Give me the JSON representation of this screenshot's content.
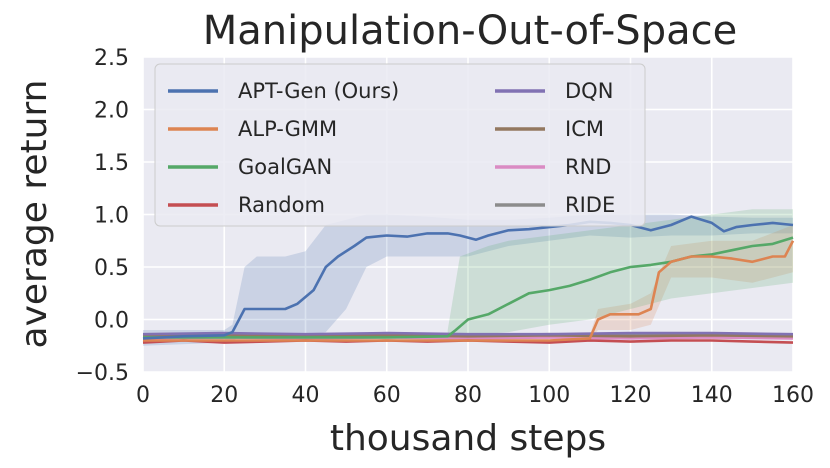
{
  "chart_data": {
    "type": "line",
    "title": "Manipulation-Out-of-Space",
    "xlabel": "thousand steps",
    "ylabel": "average return",
    "xlim": [
      0,
      160
    ],
    "ylim": [
      -0.5,
      2.5
    ],
    "xticks": [
      0,
      20,
      40,
      60,
      80,
      100,
      120,
      140,
      160
    ],
    "yticks": [
      -0.5,
      0.0,
      0.5,
      1.0,
      1.5,
      2.0,
      2.5
    ],
    "ytick_labels": [
      "−0.5",
      "0.0",
      "0.5",
      "1.0",
      "1.5",
      "2.0",
      "2.5"
    ],
    "grid": true,
    "legend_position": "top-left",
    "legend_columns": 2,
    "series": [
      {
        "name": "APT-Gen (Ours)",
        "color": "#4c72b0",
        "points": [
          [
            0,
            -0.18
          ],
          [
            10,
            -0.16
          ],
          [
            20,
            -0.15
          ],
          [
            22,
            -0.12
          ],
          [
            25,
            0.1
          ],
          [
            28,
            0.1
          ],
          [
            35,
            0.1
          ],
          [
            38,
            0.15
          ],
          [
            42,
            0.28
          ],
          [
            45,
            0.5
          ],
          [
            48,
            0.6
          ],
          [
            52,
            0.7
          ],
          [
            55,
            0.78
          ],
          [
            60,
            0.8
          ],
          [
            65,
            0.79
          ],
          [
            70,
            0.82
          ],
          [
            75,
            0.82
          ],
          [
            78,
            0.8
          ],
          [
            80,
            0.78
          ],
          [
            82,
            0.76
          ],
          [
            85,
            0.8
          ],
          [
            90,
            0.85
          ],
          [
            95,
            0.86
          ],
          [
            100,
            0.88
          ],
          [
            105,
            0.9
          ],
          [
            110,
            0.93
          ],
          [
            115,
            0.92
          ],
          [
            120,
            0.9
          ],
          [
            125,
            0.85
          ],
          [
            130,
            0.9
          ],
          [
            135,
            0.98
          ],
          [
            140,
            0.92
          ],
          [
            143,
            0.84
          ],
          [
            146,
            0.88
          ],
          [
            150,
            0.9
          ],
          [
            155,
            0.92
          ],
          [
            160,
            0.9
          ]
        ],
        "band_lower": [
          [
            0,
            -0.25
          ],
          [
            20,
            -0.22
          ],
          [
            22,
            -0.2
          ],
          [
            25,
            -0.15
          ],
          [
            30,
            -0.15
          ],
          [
            35,
            -0.15
          ],
          [
            40,
            -0.15
          ],
          [
            45,
            -0.12
          ],
          [
            50,
            0.1
          ],
          [
            55,
            0.5
          ],
          [
            60,
            0.6
          ],
          [
            70,
            0.6
          ],
          [
            80,
            0.6
          ],
          [
            90,
            0.7
          ],
          [
            100,
            0.75
          ],
          [
            110,
            0.8
          ],
          [
            120,
            0.78
          ],
          [
            130,
            0.8
          ],
          [
            140,
            0.8
          ],
          [
            150,
            0.82
          ],
          [
            160,
            0.82
          ]
        ],
        "band_upper": [
          [
            0,
            -0.1
          ],
          [
            20,
            -0.1
          ],
          [
            22,
            -0.05
          ],
          [
            25,
            0.5
          ],
          [
            28,
            0.6
          ],
          [
            35,
            0.6
          ],
          [
            40,
            0.65
          ],
          [
            45,
            0.9
          ],
          [
            50,
            0.95
          ],
          [
            55,
            1.0
          ],
          [
            60,
            1.0
          ],
          [
            70,
            0.98
          ],
          [
            80,
            0.95
          ],
          [
            90,
            0.95
          ],
          [
            100,
            0.97
          ],
          [
            110,
            1.0
          ],
          [
            120,
            1.0
          ],
          [
            130,
            1.0
          ],
          [
            140,
            0.98
          ],
          [
            150,
            0.97
          ],
          [
            160,
            0.97
          ]
        ]
      },
      {
        "name": "ALP-GMM",
        "color": "#dd8452",
        "points": [
          [
            0,
            -0.2
          ],
          [
            20,
            -0.2
          ],
          [
            40,
            -0.2
          ],
          [
            60,
            -0.2
          ],
          [
            80,
            -0.2
          ],
          [
            100,
            -0.2
          ],
          [
            110,
            -0.18
          ],
          [
            112,
            0.0
          ],
          [
            115,
            0.05
          ],
          [
            118,
            0.05
          ],
          [
            122,
            0.05
          ],
          [
            125,
            0.1
          ],
          [
            127,
            0.45
          ],
          [
            130,
            0.55
          ],
          [
            135,
            0.6
          ],
          [
            140,
            0.6
          ],
          [
            145,
            0.58
          ],
          [
            150,
            0.55
          ],
          [
            155,
            0.6
          ],
          [
            158,
            0.6
          ],
          [
            160,
            0.75
          ]
        ],
        "band_lower": [
          [
            110,
            -0.2
          ],
          [
            112,
            -0.1
          ],
          [
            120,
            -0.1
          ],
          [
            125,
            -0.05
          ],
          [
            130,
            0.4
          ],
          [
            140,
            0.4
          ],
          [
            150,
            0.35
          ],
          [
            160,
            0.45
          ]
        ],
        "band_upper": [
          [
            110,
            -0.15
          ],
          [
            112,
            0.1
          ],
          [
            120,
            0.15
          ],
          [
            125,
            0.25
          ],
          [
            130,
            0.7
          ],
          [
            140,
            0.75
          ],
          [
            150,
            0.75
          ],
          [
            160,
            0.9
          ]
        ]
      },
      {
        "name": "GoalGAN",
        "color": "#55a868",
        "points": [
          [
            0,
            -0.17
          ],
          [
            20,
            -0.17
          ],
          [
            40,
            -0.17
          ],
          [
            60,
            -0.17
          ],
          [
            75,
            -0.16
          ],
          [
            77,
            -0.1
          ],
          [
            80,
            0.0
          ],
          [
            85,
            0.05
          ],
          [
            90,
            0.15
          ],
          [
            95,
            0.25
          ],
          [
            100,
            0.28
          ],
          [
            105,
            0.32
          ],
          [
            110,
            0.38
          ],
          [
            115,
            0.45
          ],
          [
            120,
            0.5
          ],
          [
            125,
            0.52
          ],
          [
            130,
            0.55
          ],
          [
            135,
            0.6
          ],
          [
            140,
            0.62
          ],
          [
            145,
            0.66
          ],
          [
            150,
            0.7
          ],
          [
            155,
            0.72
          ],
          [
            160,
            0.78
          ]
        ],
        "band_lower": [
          [
            75,
            -0.2
          ],
          [
            80,
            -0.15
          ],
          [
            90,
            -0.12
          ],
          [
            100,
            -0.05
          ],
          [
            110,
            0.0
          ],
          [
            120,
            0.1
          ],
          [
            130,
            0.2
          ],
          [
            140,
            0.25
          ],
          [
            150,
            0.3
          ],
          [
            160,
            0.35
          ]
        ],
        "band_upper": [
          [
            75,
            -0.1
          ],
          [
            78,
            0.6
          ],
          [
            85,
            0.7
          ],
          [
            90,
            0.75
          ],
          [
            100,
            0.8
          ],
          [
            110,
            0.85
          ],
          [
            120,
            0.9
          ],
          [
            130,
            0.95
          ],
          [
            140,
            1.0
          ],
          [
            150,
            1.05
          ],
          [
            160,
            1.05
          ]
        ]
      },
      {
        "name": "Random",
        "color": "#c44e52",
        "points": [
          [
            0,
            -0.22
          ],
          [
            10,
            -0.2
          ],
          [
            20,
            -0.22
          ],
          [
            30,
            -0.21
          ],
          [
            40,
            -0.2
          ],
          [
            50,
            -0.21
          ],
          [
            60,
            -0.2
          ],
          [
            70,
            -0.21
          ],
          [
            80,
            -0.2
          ],
          [
            90,
            -0.21
          ],
          [
            100,
            -0.22
          ],
          [
            110,
            -0.2
          ],
          [
            120,
            -0.21
          ],
          [
            130,
            -0.2
          ],
          [
            140,
            -0.2
          ],
          [
            150,
            -0.21
          ],
          [
            160,
            -0.22
          ]
        ]
      },
      {
        "name": "DQN",
        "color": "#8172b3",
        "points": [
          [
            0,
            -0.14
          ],
          [
            20,
            -0.13
          ],
          [
            40,
            -0.14
          ],
          [
            60,
            -0.13
          ],
          [
            80,
            -0.14
          ],
          [
            100,
            -0.14
          ],
          [
            120,
            -0.13
          ],
          [
            140,
            -0.13
          ],
          [
            160,
            -0.14
          ]
        ]
      },
      {
        "name": "ICM",
        "color": "#937860",
        "points": [
          [
            0,
            -0.16
          ],
          [
            20,
            -0.15
          ],
          [
            40,
            -0.16
          ],
          [
            60,
            -0.15
          ],
          [
            80,
            -0.16
          ],
          [
            100,
            -0.15
          ],
          [
            120,
            -0.16
          ],
          [
            140,
            -0.15
          ],
          [
            160,
            -0.16
          ]
        ]
      },
      {
        "name": "RND",
        "color": "#da8bc3",
        "points": [
          [
            0,
            -0.18
          ],
          [
            20,
            -0.17
          ],
          [
            40,
            -0.18
          ],
          [
            60,
            -0.17
          ],
          [
            80,
            -0.18
          ],
          [
            100,
            -0.17
          ],
          [
            120,
            -0.18
          ],
          [
            140,
            -0.17
          ],
          [
            160,
            -0.18
          ]
        ]
      },
      {
        "name": "RIDE",
        "color": "#8c8c8c",
        "points": [
          [
            0,
            -0.15
          ],
          [
            20,
            -0.14
          ],
          [
            40,
            -0.15
          ],
          [
            60,
            -0.14
          ],
          [
            80,
            -0.15
          ],
          [
            100,
            -0.14
          ],
          [
            120,
            -0.15
          ],
          [
            140,
            -0.14
          ],
          [
            160,
            -0.15
          ]
        ]
      }
    ]
  }
}
